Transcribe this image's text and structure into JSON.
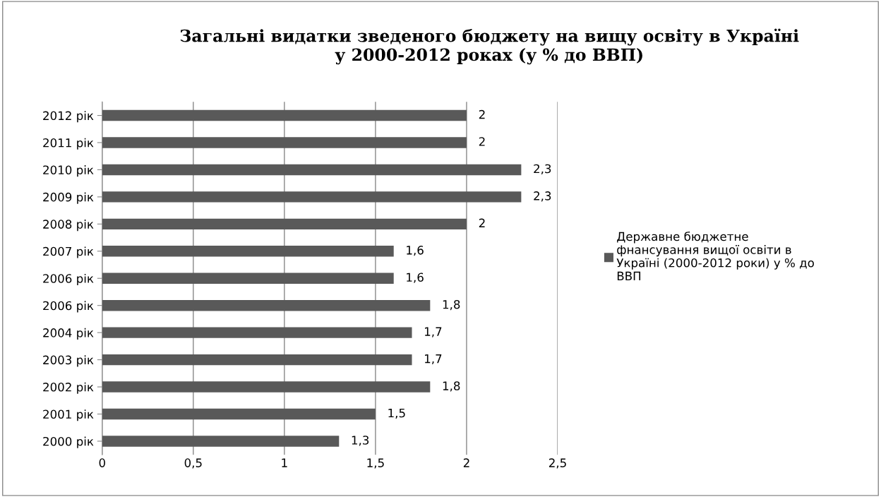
{
  "chart_data": {
    "type": "bar",
    "orientation": "horizontal",
    "title": "Загальні видатки зведеного бюджету на вищу освіту в Україні\nу 2000-2012 роках (у % до ВВП)",
    "categories": [
      "2012 рік",
      "2011 рік",
      "2010 рік",
      "2009 рік",
      "2008 рік",
      "2007 рік",
      "2006 рік",
      "2006 рік",
      "2004 рік",
      "2003 рік",
      "2002 рік",
      "2001 рік",
      "2000 рік"
    ],
    "series": [
      {
        "name": "Державне бюджетне\nфнансування вищої освіти в\nУкраїні (2000-2012 роки) у % до\nВВП",
        "color": "#595959",
        "values": [
          2,
          2,
          2.3,
          2.3,
          2,
          1.6,
          1.6,
          1.8,
          1.7,
          1.7,
          1.8,
          1.5,
          1.3
        ],
        "value_labels": [
          "2",
          "2",
          "2,3",
          "2,3",
          "2",
          "1,6",
          "1,6",
          "1,8",
          "1,7",
          "1,7",
          "1,8",
          "1,5",
          "1,3"
        ]
      }
    ],
    "xlim": [
      0,
      2.5
    ],
    "xticks": [
      0,
      {
        "value": 0.5,
        "label": "0,5"
      },
      1,
      {
        "value": 1.5,
        "label": "1,5"
      },
      2,
      {
        "value": 2.5,
        "label": "2,5"
      }
    ],
    "grid": "x",
    "legend": "right"
  }
}
